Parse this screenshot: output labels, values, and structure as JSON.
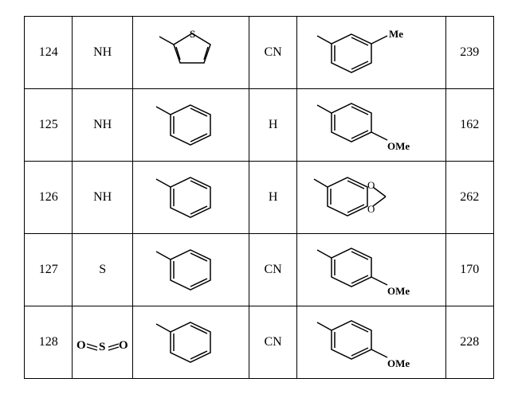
{
  "table": {
    "rows": [
      {
        "col1": "124",
        "col2": "NH",
        "col3_type": "thiophene",
        "col4": "CN",
        "col5_type": "m-toluene",
        "col5_label": "Me",
        "col6": "239"
      },
      {
        "col1": "125",
        "col2": "NH",
        "col3_type": "benzene",
        "col4": "H",
        "col5_type": "p-anisole",
        "col5_label": "OMe",
        "col6": "162"
      },
      {
        "col1": "126",
        "col2": "NH",
        "col3_type": "benzene",
        "col4": "H",
        "col5_type": "benzodioxole",
        "col5_label": "",
        "col6": "262"
      },
      {
        "col1": "127",
        "col2": "S",
        "col3_type": "benzene",
        "col4": "CN",
        "col5_type": "p-anisole",
        "col5_label": "OMe",
        "col6": "170"
      },
      {
        "col1": "128",
        "col2": "SO2",
        "col3_type": "benzene",
        "col4": "CN",
        "col5_type": "p-anisole",
        "col5_label": "OMe",
        "col6": "228"
      }
    ],
    "stroke": "#000000",
    "fontsize": 16,
    "label_fontsize": 13
  }
}
